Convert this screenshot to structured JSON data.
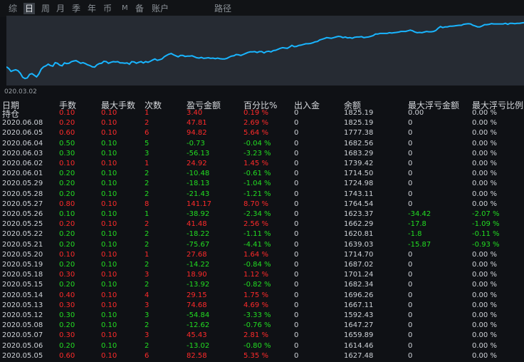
{
  "tabs": [
    {
      "label": "综",
      "active": false
    },
    {
      "label": "日",
      "active": true
    },
    {
      "label": "周",
      "active": false
    },
    {
      "label": "月",
      "active": false
    },
    {
      "label": "季",
      "active": false
    },
    {
      "label": "年",
      "active": false
    },
    {
      "label": "币",
      "active": false
    },
    {
      "label": "M",
      "active": false
    },
    {
      "label": "备",
      "active": false
    },
    {
      "label": "账户",
      "active": false
    },
    {
      "label": "路径",
      "active": false
    }
  ],
  "chart_start_label": "020.03.02",
  "chart_data": {
    "type": "line",
    "color": "#19b5ff",
    "values": [
      80,
      75,
      66,
      69,
      71,
      68,
      60,
      48,
      44,
      46,
      57,
      59,
      54,
      49,
      58,
      73,
      80,
      83,
      88,
      84,
      82,
      93,
      91,
      85,
      83,
      92,
      90,
      91,
      96,
      98,
      99,
      95,
      91,
      93,
      90,
      86,
      84,
      80,
      79,
      86,
      90,
      91,
      97,
      96,
      91,
      94,
      96,
      95,
      96,
      92,
      92,
      91,
      92,
      88,
      96,
      95,
      91,
      94,
      96,
      92,
      96,
      94,
      97,
      101,
      104,
      100,
      102,
      104,
      111,
      115,
      119,
      121,
      117,
      114,
      111,
      115,
      115,
      112,
      113,
      113,
      114,
      111,
      108,
      107,
      109,
      106,
      107,
      108,
      106,
      107,
      105,
      107,
      105,
      104,
      104,
      106,
      110,
      113,
      114,
      118,
      117,
      115,
      118,
      121,
      124,
      126,
      126,
      127,
      124,
      127,
      127,
      123,
      127,
      128,
      126,
      130,
      131,
      134,
      137,
      139,
      138,
      137,
      141,
      146,
      142,
      143,
      146,
      147,
      149,
      151,
      151,
      152,
      154,
      157,
      158,
      163,
      165,
      167,
      170,
      169,
      168,
      170,
      172,
      174,
      173,
      170,
      172,
      169,
      170,
      168,
      171,
      172,
      172,
      173,
      170,
      171,
      172,
      174,
      176,
      181,
      181,
      183,
      183,
      183,
      183,
      185,
      184,
      185,
      186,
      187,
      189,
      189,
      189,
      191,
      193,
      191,
      187,
      185,
      186,
      185,
      187,
      189,
      188,
      188,
      189,
      192,
      199,
      204,
      201,
      203,
      203,
      205,
      205,
      206,
      207,
      208,
      208,
      211,
      212,
      213,
      212,
      208,
      206,
      203,
      203,
      206,
      210,
      210,
      211,
      213,
      212,
      212,
      212,
      212,
      212,
      214,
      211,
      214,
      214,
      213,
      214,
      214,
      215,
      216
    ],
    "ylim": [
      40,
      220
    ]
  },
  "table": {
    "headers": [
      "日期",
      "手数",
      "最大手数",
      "次数",
      "盈亏金额",
      "百分比%",
      "出入金",
      "余额",
      "最大浮亏金额",
      "最大浮亏比例"
    ],
    "rows": [
      {
        "color": "up",
        "cells": [
          "持仓",
          "0.10",
          "0.10",
          "1",
          "3.40",
          "0.19 %",
          "0",
          "1825.19",
          "0.00",
          "0.00 %"
        ]
      },
      {
        "color": "up",
        "cells": [
          "2020.06.08",
          "0.20",
          "0.10",
          "2",
          "47.81",
          "2.69 %",
          "0",
          "1825.19",
          "0",
          "0.00 %"
        ]
      },
      {
        "color": "up",
        "cells": [
          "2020.06.05",
          "0.60",
          "0.10",
          "6",
          "94.82",
          "5.64 %",
          "0",
          "1777.38",
          "0",
          "0.00 %"
        ]
      },
      {
        "color": "down",
        "cells": [
          "2020.06.04",
          "0.50",
          "0.10",
          "5",
          "-0.73",
          "-0.04 %",
          "0",
          "1682.56",
          "0",
          "0.00 %"
        ]
      },
      {
        "color": "down",
        "cells": [
          "2020.06.03",
          "0.30",
          "0.10",
          "3",
          "-56.13",
          "-3.23 %",
          "0",
          "1683.29",
          "0",
          "0.00 %"
        ]
      },
      {
        "color": "up",
        "cells": [
          "2020.06.02",
          "0.10",
          "0.10",
          "1",
          "24.92",
          "1.45 %",
          "0",
          "1739.42",
          "0",
          "0.00 %"
        ]
      },
      {
        "color": "down",
        "cells": [
          "2020.06.01",
          "0.20",
          "0.10",
          "2",
          "-10.48",
          "-0.61 %",
          "0",
          "1714.50",
          "0",
          "0.00 %"
        ]
      },
      {
        "color": "down",
        "cells": [
          "2020.05.29",
          "0.20",
          "0.10",
          "2",
          "-18.13",
          "-1.04 %",
          "0",
          "1724.98",
          "0",
          "0.00 %"
        ]
      },
      {
        "color": "down",
        "cells": [
          "2020.05.28",
          "0.20",
          "0.10",
          "2",
          "-21.43",
          "-1.21 %",
          "0",
          "1743.11",
          "0",
          "0.00 %"
        ]
      },
      {
        "color": "up",
        "cells": [
          "2020.05.27",
          "0.80",
          "0.10",
          "8",
          "141.17",
          "8.70 %",
          "0",
          "1764.54",
          "0",
          "0.00 %"
        ]
      },
      {
        "color": "down",
        "cells": [
          "2020.05.26",
          "0.10",
          "0.10",
          "1",
          "-38.92",
          "-2.34 %",
          "0",
          "1623.37",
          "-34.42",
          "-2.07 %"
        ]
      },
      {
        "color": "up",
        "cells": [
          "2020.05.25",
          "0.20",
          "0.10",
          "2",
          "41.48",
          "2.56 %",
          "0",
          "1662.29",
          "-17.8",
          "-1.09 %"
        ]
      },
      {
        "color": "down",
        "cells": [
          "2020.05.22",
          "0.20",
          "0.10",
          "2",
          "-18.22",
          "-1.11 %",
          "0",
          "1620.81",
          "-1.8",
          "-0.11 %"
        ]
      },
      {
        "color": "down",
        "cells": [
          "2020.05.21",
          "0.20",
          "0.10",
          "2",
          "-75.67",
          "-4.41 %",
          "0",
          "1639.03",
          "-15.87",
          "-0.93 %"
        ]
      },
      {
        "color": "up",
        "cells": [
          "2020.05.20",
          "0.10",
          "0.10",
          "1",
          "27.68",
          "1.64 %",
          "0",
          "1714.70",
          "0",
          "0.00 %"
        ]
      },
      {
        "color": "down",
        "cells": [
          "2020.05.19",
          "0.20",
          "0.10",
          "2",
          "-14.22",
          "-0.84 %",
          "0",
          "1687.02",
          "0",
          "0.00 %"
        ]
      },
      {
        "color": "up",
        "cells": [
          "2020.05.18",
          "0.30",
          "0.10",
          "3",
          "18.90",
          "1.12 %",
          "0",
          "1701.24",
          "0",
          "0.00 %"
        ]
      },
      {
        "color": "down",
        "cells": [
          "2020.05.15",
          "0.20",
          "0.10",
          "2",
          "-13.92",
          "-0.82 %",
          "0",
          "1682.34",
          "0",
          "0.00 %"
        ]
      },
      {
        "color": "up",
        "cells": [
          "2020.05.14",
          "0.40",
          "0.10",
          "4",
          "29.15",
          "1.75 %",
          "0",
          "1696.26",
          "0",
          "0.00 %"
        ]
      },
      {
        "color": "up",
        "cells": [
          "2020.05.13",
          "0.30",
          "0.10",
          "3",
          "74.68",
          "4.69 %",
          "0",
          "1667.11",
          "0",
          "0.00 %"
        ]
      },
      {
        "color": "down",
        "cells": [
          "2020.05.12",
          "0.30",
          "0.10",
          "3",
          "-54.84",
          "-3.33 %",
          "0",
          "1592.43",
          "0",
          "0.00 %"
        ]
      },
      {
        "color": "down",
        "cells": [
          "2020.05.08",
          "0.20",
          "0.10",
          "2",
          "-12.62",
          "-0.76 %",
          "0",
          "1647.27",
          "0",
          "0.00 %"
        ]
      },
      {
        "color": "up",
        "cells": [
          "2020.05.07",
          "0.30",
          "0.10",
          "3",
          "45.43",
          "2.81 %",
          "0",
          "1659.89",
          "0",
          "0.00 %"
        ]
      },
      {
        "color": "down",
        "cells": [
          "2020.05.06",
          "0.20",
          "0.10",
          "2",
          "-13.02",
          "-0.80 %",
          "0",
          "1614.46",
          "0",
          "0.00 %"
        ]
      },
      {
        "color": "up",
        "cells": [
          "2020.05.05",
          "0.60",
          "0.10",
          "6",
          "82.58",
          "5.35 %",
          "0",
          "1627.48",
          "0",
          "0.00 %"
        ]
      }
    ]
  }
}
